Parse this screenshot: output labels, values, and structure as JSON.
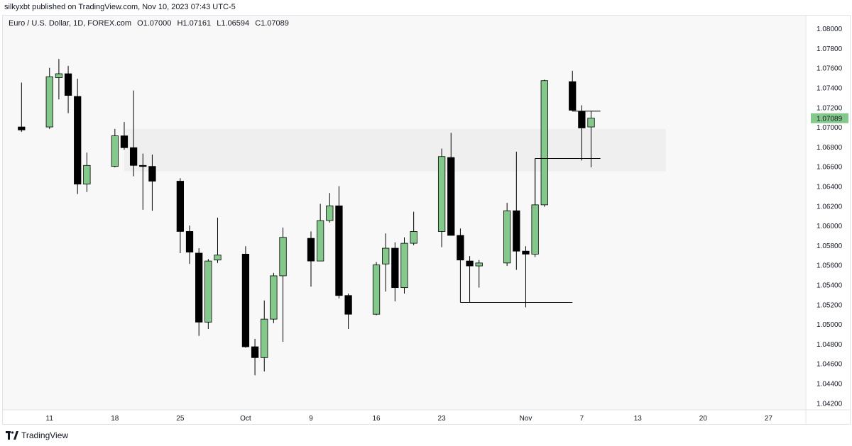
{
  "header": {
    "published_line": "silkyxbt published on TradingView.com, Nov 10, 2023 07:43 UTC-5"
  },
  "legend": {
    "symbol": "Euro / U.S. Dollar, 1D, FOREX.com",
    "open": "O1.07000",
    "high": "H1.07161",
    "low": "L1.06594",
    "close": "C1.07089"
  },
  "footer": {
    "brand": "TradingView"
  },
  "colors": {
    "up": "#84c98b",
    "down": "#000000",
    "wick": "#000000",
    "plot_bg": "#f8f8f8",
    "zone": "#efefef",
    "axis_text": "#131722",
    "price_tag": "#84c98b"
  },
  "chart_data": {
    "type": "candlestick",
    "title": "",
    "xlabel": "",
    "ylabel": "",
    "x_ticks": [
      {
        "date": "2023-09-11",
        "label": "11"
      },
      {
        "date": "2023-09-18",
        "label": "18"
      },
      {
        "date": "2023-09-25",
        "label": "25"
      },
      {
        "date": "2023-10-02",
        "label": "Oct"
      },
      {
        "date": "2023-10-09",
        "label": "9"
      },
      {
        "date": "2023-10-16",
        "label": "16"
      },
      {
        "date": "2023-10-23",
        "label": "23"
      },
      {
        "date": "2023-11-01",
        "label": "Nov"
      },
      {
        "date": "2023-11-07",
        "label": "7"
      },
      {
        "date": "2023-11-13",
        "label": "13"
      },
      {
        "date": "2023-11-20",
        "label": "20"
      },
      {
        "date": "2023-11-27",
        "label": "27"
      }
    ],
    "y_ticks": [
      "1.08000",
      "1.07800",
      "1.07600",
      "1.07400",
      "1.07200",
      "1.07000",
      "1.06800",
      "1.06600",
      "1.06400",
      "1.06200",
      "1.06000",
      "1.05800",
      "1.05600",
      "1.05400",
      "1.05200",
      "1.05000",
      "1.04800",
      "1.04600",
      "1.04400",
      "1.04200"
    ],
    "ylim": [
      1.0413,
      1.0813
    ],
    "xlim": [
      "2023-09-06",
      "2023-12-01"
    ],
    "grid": false,
    "last_price": "1.07089",
    "candles": [
      {
        "date": "2023-09-08",
        "o": 1.07,
        "h": 1.0745,
        "l": 1.0695,
        "c": 1.0697
      },
      {
        "date": "2023-09-11",
        "o": 1.07,
        "h": 1.076,
        "l": 1.0698,
        "c": 1.0751
      },
      {
        "date": "2023-09-12",
        "o": 1.075,
        "h": 1.0769,
        "l": 1.0728,
        "c": 1.0754
      },
      {
        "date": "2023-09-13",
        "o": 1.0754,
        "h": 1.0762,
        "l": 1.0714,
        "c": 1.0732
      },
      {
        "date": "2023-09-14",
        "o": 1.0731,
        "h": 1.0749,
        "l": 1.0632,
        "c": 1.0642
      },
      {
        "date": "2023-09-15",
        "o": 1.0642,
        "h": 1.0674,
        "l": 1.0634,
        "c": 1.0661
      },
      {
        "date": "2023-09-18",
        "o": 1.066,
        "h": 1.0698,
        "l": 1.0659,
        "c": 1.0691
      },
      {
        "date": "2023-09-19",
        "o": 1.0691,
        "h": 1.0705,
        "l": 1.0677,
        "c": 1.0679
      },
      {
        "date": "2023-09-20",
        "o": 1.0679,
        "h": 1.0737,
        "l": 1.065,
        "c": 1.0661
      },
      {
        "date": "2023-09-21",
        "o": 1.0661,
        "h": 1.0673,
        "l": 1.0616,
        "c": 1.066
      },
      {
        "date": "2023-09-22",
        "o": 1.066,
        "h": 1.0672,
        "l": 1.0615,
        "c": 1.0645
      },
      {
        "date": "2023-09-25",
        "o": 1.0645,
        "h": 1.0648,
        "l": 1.0572,
        "c": 1.0594
      },
      {
        "date": "2023-09-26",
        "o": 1.0594,
        "h": 1.06,
        "l": 1.0561,
        "c": 1.0573
      },
      {
        "date": "2023-09-27",
        "o": 1.0572,
        "h": 1.0577,
        "l": 1.0488,
        "c": 1.0502
      },
      {
        "date": "2023-09-28",
        "o": 1.0502,
        "h": 1.0566,
        "l": 1.0495,
        "c": 1.0564
      },
      {
        "date": "2023-09-29",
        "o": 1.0565,
        "h": 1.0608,
        "l": 1.0562,
        "c": 1.057
      },
      {
        "date": "2023-10-02",
        "o": 1.0571,
        "h": 1.0579,
        "l": 1.0476,
        "c": 1.0477
      },
      {
        "date": "2023-10-03",
        "o": 1.0477,
        "h": 1.0485,
        "l": 1.0448,
        "c": 1.0466
      },
      {
        "date": "2023-10-04",
        "o": 1.0466,
        "h": 1.0524,
        "l": 1.0452,
        "c": 1.0505
      },
      {
        "date": "2023-10-05",
        "o": 1.0505,
        "h": 1.0552,
        "l": 1.0501,
        "c": 1.0549
      },
      {
        "date": "2023-10-06",
        "o": 1.0549,
        "h": 1.0598,
        "l": 1.0482,
        "c": 1.0588
      },
      {
        "date": "2023-10-09",
        "o": 1.0587,
        "h": 1.0594,
        "l": 1.0538,
        "c": 1.0564
      },
      {
        "date": "2023-10-10",
        "o": 1.0564,
        "h": 1.0622,
        "l": 1.0564,
        "c": 1.0605
      },
      {
        "date": "2023-10-11",
        "o": 1.0605,
        "h": 1.0633,
        "l": 1.0603,
        "c": 1.062
      },
      {
        "date": "2023-10-12",
        "o": 1.062,
        "h": 1.064,
        "l": 1.0526,
        "c": 1.0529
      },
      {
        "date": "2023-10-13",
        "o": 1.0529,
        "h": 1.0531,
        "l": 1.0495,
        "c": 1.051
      },
      {
        "date": "2023-10-16",
        "o": 1.051,
        "h": 1.0563,
        "l": 1.0509,
        "c": 1.056
      },
      {
        "date": "2023-10-17",
        "o": 1.0561,
        "h": 1.0592,
        "l": 1.0533,
        "c": 1.0577
      },
      {
        "date": "2023-10-18",
        "o": 1.0577,
        "h": 1.0583,
        "l": 1.0523,
        "c": 1.0537
      },
      {
        "date": "2023-10-19",
        "o": 1.0537,
        "h": 1.0588,
        "l": 1.0531,
        "c": 1.0582
      },
      {
        "date": "2023-10-20",
        "o": 1.0582,
        "h": 1.0614,
        "l": 1.058,
        "c": 1.0594
      },
      {
        "date": "2023-10-23",
        "o": 1.0594,
        "h": 1.0678,
        "l": 1.0578,
        "c": 1.067
      },
      {
        "date": "2023-10-24",
        "o": 1.0669,
        "h": 1.0694,
        "l": 1.059,
        "c": 1.059
      },
      {
        "date": "2023-10-25",
        "o": 1.059,
        "h": 1.0597,
        "l": 1.0565,
        "c": 1.0565
      },
      {
        "date": "2023-10-26",
        "o": 1.0564,
        "h": 1.0569,
        "l": 1.0522,
        "c": 1.0559
      },
      {
        "date": "2023-10-27",
        "o": 1.0559,
        "h": 1.0565,
        "l": 1.0537,
        "c": 1.0562
      },
      {
        "date": "2023-10-30",
        "o": 1.0562,
        "h": 1.0623,
        "l": 1.0559,
        "c": 1.0615
      },
      {
        "date": "2023-10-31",
        "o": 1.0615,
        "h": 1.0675,
        "l": 1.0555,
        "c": 1.0574
      },
      {
        "date": "2023-11-01",
        "o": 1.0574,
        "h": 1.0579,
        "l": 1.0517,
        "c": 1.0571
      },
      {
        "date": "2023-11-02",
        "o": 1.0571,
        "h": 1.0668,
        "l": 1.0568,
        "c": 1.0621
      },
      {
        "date": "2023-11-03",
        "o": 1.0621,
        "h": 1.0748,
        "l": 1.0619,
        "c": 1.0747
      },
      {
        "date": "2023-11-06",
        "o": 1.0746,
        "h": 1.0757,
        "l": 1.0716,
        "c": 1.0717
      },
      {
        "date": "2023-11-07",
        "o": 1.0716,
        "h": 1.0722,
        "l": 1.0666,
        "c": 1.0699
      },
      {
        "date": "2023-11-08",
        "o": 1.07,
        "h": 1.0716,
        "l": 1.0659,
        "c": 1.0709
      }
    ],
    "annotations": [
      {
        "type": "zone",
        "from_date": "2023-09-19",
        "to_date": "2023-11-16",
        "y_low": 1.0655,
        "y_high": 1.0698
      },
      {
        "type": "hline",
        "from_date": "2023-10-25",
        "to_date": "2023-11-06",
        "y": 1.0522
      },
      {
        "type": "hline",
        "from_date": "2023-11-06",
        "to_date": "2023-11-09",
        "y": 1.07161
      },
      {
        "type": "hline",
        "from_date": "2023-11-02",
        "to_date": "2023-11-09",
        "y": 1.0668
      }
    ]
  }
}
